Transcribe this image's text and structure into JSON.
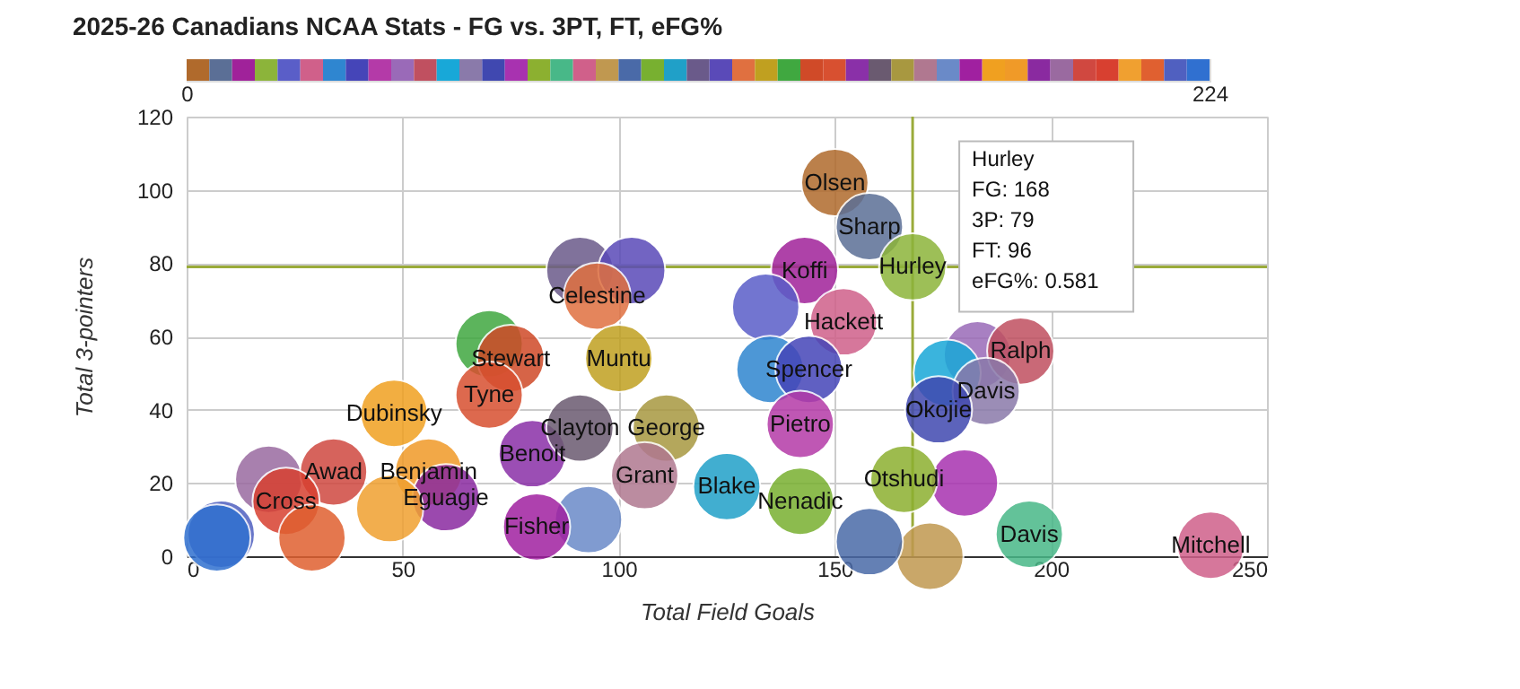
{
  "chart_data": {
    "type": "bubble",
    "title": "2025-26 Canadians NCAA Stats - FG vs. 3PT, FT, eFG%",
    "xlabel": "Total Field Goals",
    "ylabel": "Total 3-pointers",
    "xlim": [
      0,
      250
    ],
    "xticks": [
      0,
      50,
      100,
      150,
      200,
      250
    ],
    "ylim": [
      0,
      120
    ],
    "yticks": [
      0,
      20,
      40,
      60,
      80,
      100,
      120
    ],
    "grid": true,
    "clim": [
      0,
      224
    ],
    "cticks": [
      0,
      224
    ],
    "ref_lines": [
      {
        "axis": "y",
        "value": 79,
        "color": "#9aab3a"
      },
      {
        "axis": "x",
        "value": 168,
        "color": "#9aab3a"
      }
    ],
    "annotations": [
      {
        "text": "Hurley\nFG: 168\n3P: 79\nFT: 96\neFG%: 0.581",
        "x": 168,
        "y": 79
      }
    ],
    "series": [
      {
        "name": "Olsen",
        "color": "#b06a2c",
        "x": [
          150
        ],
        "values": [
          102
        ],
        "sizes": [
          1
        ]
      },
      {
        "name": "Sharp",
        "color": "#5b6f96",
        "x": [
          158
        ],
        "values": [
          90
        ],
        "sizes": [
          1
        ]
      },
      {
        "name": "Koffi",
        "color": "#a0229a",
        "x": [
          143
        ],
        "values": [
          78
        ],
        "sizes": [
          1
        ]
      },
      {
        "name": "Hurley",
        "color": "#8cb43a",
        "x": [
          168
        ],
        "values": [
          79
        ],
        "sizes": [
          1
        ]
      },
      {
        "color": "#5a5ec8",
        "x": [
          134
        ],
        "values": [
          68
        ],
        "sizes": [
          1
        ]
      },
      {
        "name": "Hackett",
        "color": "#d0608a",
        "x": [
          152
        ],
        "values": [
          64
        ],
        "sizes": [
          1
        ]
      },
      {
        "color": "#2f86d0",
        "x": [
          135
        ],
        "values": [
          51
        ],
        "sizes": [
          1
        ]
      },
      {
        "name": "Spencer",
        "color": "#4545b8",
        "x": [
          144
        ],
        "values": [
          51
        ],
        "sizes": [
          1
        ]
      },
      {
        "name": "Pietro",
        "color": "#b43aa8",
        "x": [
          142
        ],
        "values": [
          36
        ],
        "sizes": [
          1
        ]
      },
      {
        "color": "#9a6ab8",
        "x": [
          183
        ],
        "values": [
          55
        ],
        "sizes": [
          1
        ]
      },
      {
        "name": "Ralph",
        "color": "#c05060",
        "x": [
          193
        ],
        "values": [
          56
        ],
        "sizes": [
          1
        ]
      },
      {
        "color": "#18a8d8",
        "x": [
          176
        ],
        "values": [
          50
        ],
        "sizes": [
          1
        ]
      },
      {
        "name": "Davis",
        "color": "#8a7aaa",
        "x": [
          185
        ],
        "values": [
          45
        ],
        "sizes": [
          1
        ]
      },
      {
        "name": "Okojie",
        "color": "#4048b0",
        "x": [
          174
        ],
        "values": [
          40
        ],
        "sizes": [
          1
        ]
      },
      {
        "color": "#a832b0",
        "x": [
          180
        ],
        "values": [
          20
        ],
        "sizes": [
          1
        ]
      },
      {
        "name": "Otshudi",
        "color": "#8cb030",
        "x": [
          166
        ],
        "values": [
          21
        ],
        "sizes": [
          1
        ]
      },
      {
        "name": "Davis",
        "color": "#48b888",
        "x": [
          195
        ],
        "values": [
          6
        ],
        "sizes": [
          1
        ]
      },
      {
        "name": "Mitchell",
        "color": "#d0608a",
        "x": [
          237
        ],
        "values": [
          3
        ],
        "sizes": [
          1
        ]
      },
      {
        "color": "#c09850",
        "x": [
          172
        ],
        "values": [
          0
        ],
        "sizes": [
          1
        ]
      },
      {
        "color": "#4a6aa8",
        "x": [
          158
        ],
        "values": [
          4
        ],
        "sizes": [
          1
        ]
      },
      {
        "name": "Nenadic",
        "color": "#78b030",
        "x": [
          142
        ],
        "values": [
          15
        ],
        "sizes": [
          1
        ]
      },
      {
        "name": "Blake",
        "color": "#20a0c8",
        "x": [
          125
        ],
        "values": [
          19
        ],
        "sizes": [
          1
        ]
      },
      {
        "color": "#6a5a8a",
        "x": [
          91
        ],
        "values": [
          78
        ],
        "sizes": [
          1
        ]
      },
      {
        "color": "#5a4ab8",
        "x": [
          103
        ],
        "values": [
          78
        ],
        "sizes": [
          1
        ]
      },
      {
        "name": "Celestine",
        "color": "#e07040",
        "x": [
          95
        ],
        "values": [
          71
        ],
        "sizes": [
          1
        ]
      },
      {
        "name": "Muntu",
        "color": "#c0a020",
        "x": [
          100
        ],
        "values": [
          54
        ],
        "sizes": [
          1
        ]
      },
      {
        "color": "#40a840",
        "x": [
          70
        ],
        "values": [
          58
        ],
        "sizes": [
          1
        ]
      },
      {
        "name": "Stewart",
        "color": "#d04a28",
        "x": [
          75
        ],
        "values": [
          54
        ],
        "sizes": [
          1
        ]
      },
      {
        "name": "Tyne",
        "color": "#d85030",
        "x": [
          70
        ],
        "values": [
          44
        ],
        "sizes": [
          1
        ]
      },
      {
        "name": "Benoit",
        "color": "#8a30a8",
        "x": [
          80
        ],
        "values": [
          28
        ],
        "sizes": [
          1
        ]
      },
      {
        "name": "Clayton",
        "color": "#6a5a70",
        "x": [
          91
        ],
        "values": [
          35
        ],
        "sizes": [
          1
        ]
      },
      {
        "name": "George",
        "color": "#a89840",
        "x": [
          111
        ],
        "values": [
          35
        ],
        "sizes": [
          1
        ]
      },
      {
        "name": "Grant",
        "color": "#b07890",
        "x": [
          106
        ],
        "values": [
          22
        ],
        "sizes": [
          1
        ]
      },
      {
        "color": "#6a8ac8",
        "x": [
          93
        ],
        "values": [
          10
        ],
        "sizes": [
          1
        ]
      },
      {
        "name": "Fisher",
        "color": "#a020a0",
        "x": [
          81
        ],
        "values": [
          8
        ],
        "sizes": [
          1
        ]
      },
      {
        "name": "Dubinsky",
        "color": "#f0a020",
        "x": [
          48
        ],
        "values": [
          39
        ],
        "sizes": [
          1
        ]
      },
      {
        "name": "Benjamin",
        "color": "#f09a28",
        "x": [
          56
        ],
        "values": [
          23
        ],
        "sizes": [
          1
        ]
      },
      {
        "name": "Eguagie",
        "color": "#8a2aa0",
        "x": [
          60
        ],
        "values": [
          16
        ],
        "sizes": [
          1
        ]
      },
      {
        "color": "#9a6aa0",
        "x": [
          19
        ],
        "values": [
          21
        ],
        "sizes": [
          1
        ]
      },
      {
        "name": "Awad",
        "color": "#d04840",
        "x": [
          34
        ],
        "values": [
          23
        ],
        "sizes": [
          1
        ]
      },
      {
        "name": "Cross",
        "color": "#d84030",
        "x": [
          23
        ],
        "values": [
          15
        ],
        "sizes": [
          1
        ]
      },
      {
        "color": "#f0a030",
        "x": [
          47
        ],
        "values": [
          13
        ],
        "sizes": [
          1
        ]
      },
      {
        "color": "#e06030",
        "x": [
          29
        ],
        "values": [
          5
        ],
        "sizes": [
          1
        ]
      },
      {
        "color": "#5060c0",
        "x": [
          8
        ],
        "values": [
          6
        ],
        "sizes": [
          1
        ]
      },
      {
        "color": "#3070d0",
        "x": [
          7
        ],
        "values": [
          5
        ],
        "sizes": [
          1
        ]
      }
    ]
  }
}
